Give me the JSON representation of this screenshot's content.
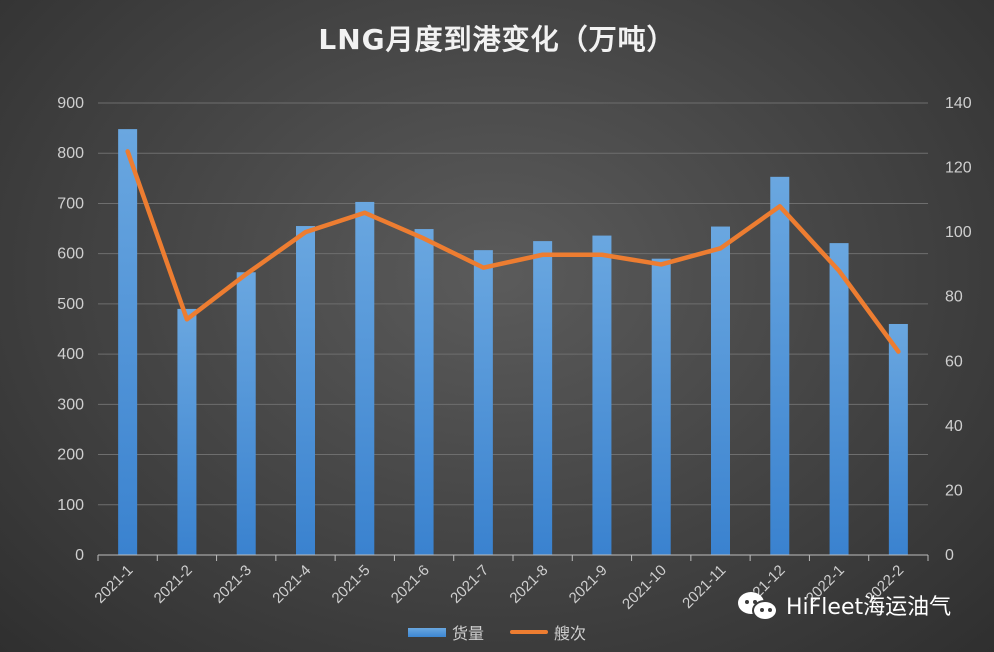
{
  "chart_data": {
    "type": "bar",
    "title": "LNG月度到港变化（万吨）",
    "categories": [
      "2021-1",
      "2021-2",
      "2021-3",
      "2021-4",
      "2021-5",
      "2021-6",
      "2021-7",
      "2021-8",
      "2021-9",
      "2021-10",
      "2021-11",
      "2021-12",
      "2022-1",
      "2022-2"
    ],
    "series": [
      {
        "name": "货量",
        "type": "bar",
        "axis": "left",
        "color": "#4a90d9",
        "values": [
          848,
          490,
          563,
          655,
          703,
          649,
          607,
          625,
          636,
          590,
          654,
          753,
          621,
          460
        ]
      },
      {
        "name": "艘次",
        "type": "line",
        "axis": "right",
        "color": "#ed7d31",
        "values": [
          125,
          73,
          87,
          100,
          106,
          98,
          89,
          93,
          93,
          90,
          95,
          108,
          88,
          63
        ]
      }
    ],
    "y_left": {
      "min": 0,
      "max": 900,
      "step": 100,
      "ticks": [
        "0",
        "100",
        "200",
        "300",
        "400",
        "500",
        "600",
        "700",
        "800",
        "900"
      ]
    },
    "y_right": {
      "min": 0,
      "max": 140,
      "step": 20,
      "ticks": [
        "0",
        "20",
        "40",
        "60",
        "80",
        "100",
        "120",
        "140"
      ]
    },
    "grid": true,
    "legend_position": "bottom"
  },
  "legend": {
    "bar_label": "货量",
    "line_label": "艘次"
  },
  "watermark": {
    "text": "HiFleet海运油气",
    "icon": "wechat-icon"
  }
}
